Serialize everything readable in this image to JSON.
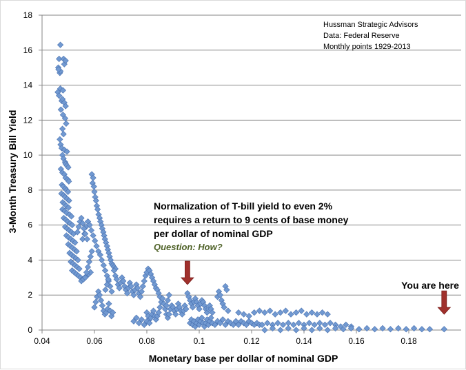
{
  "chart_data": {
    "type": "scatter",
    "title": "",
    "xlabel": "Monetary base per dollar of nominal GDP",
    "ylabel": "3-Month Treasury Bill Yield",
    "xlim": [
      0.04,
      0.2
    ],
    "ylim": [
      0,
      18
    ],
    "xticks": [
      0.04,
      0.06,
      0.08,
      0.1,
      0.12,
      0.14,
      0.16,
      0.18
    ],
    "xtick_labels": [
      "0.04",
      "0.06",
      "0.08",
      "0.1",
      "0.12",
      "0.14",
      "0.16",
      "0.18"
    ],
    "yticks": [
      0,
      2,
      4,
      6,
      8,
      10,
      12,
      14,
      16,
      18
    ],
    "ytick_labels": [
      "0",
      "2",
      "4",
      "6",
      "8",
      "10",
      "12",
      "14",
      "16",
      "18"
    ],
    "grid": "horizontal",
    "marker_color": "#7199d1",
    "marker_edge_color": "#4a72b0",
    "source_lines": [
      "Hussman Strategic Advisors",
      "Data: Federal Reserve",
      "Monthly points 1929-2013"
    ],
    "annotation": {
      "lines": [
        "Normalization of T-bill yield to even 2%",
        "requires a return to 9 cents of base money",
        "per dollar of nominal GDP"
      ],
      "question": "Question: How?",
      "question_color": "#4f6228",
      "arrow_point": [
        0.0955,
        2.6
      ]
    },
    "you_are_here": {
      "label": "You are here",
      "point": [
        0.1935,
        0.9
      ]
    },
    "arrow_color": "#a0302c",
    "points": [
      [
        0.047,
        16.3
      ],
      [
        0.0465,
        15.5
      ],
      [
        0.0462,
        15.0
      ],
      [
        0.0468,
        14.7
      ],
      [
        0.0482,
        15.5
      ],
      [
        0.0485,
        15.2
      ],
      [
        0.049,
        15.4
      ],
      [
        0.047,
        14.8
      ],
      [
        0.0463,
        14.9
      ],
      [
        0.046,
        13.6
      ],
      [
        0.0465,
        13.4
      ],
      [
        0.047,
        13.8
      ],
      [
        0.0475,
        13.1
      ],
      [
        0.048,
        13.7
      ],
      [
        0.0478,
        13.2
      ],
      [
        0.0485,
        13.0
      ],
      [
        0.049,
        12.8
      ],
      [
        0.0472,
        12.6
      ],
      [
        0.048,
        12.3
      ],
      [
        0.0488,
        12.1
      ],
      [
        0.0492,
        11.8
      ],
      [
        0.0478,
        11.5
      ],
      [
        0.0482,
        11.2
      ],
      [
        0.0468,
        10.9
      ],
      [
        0.0471,
        10.6
      ],
      [
        0.0475,
        10.4
      ],
      [
        0.0485,
        10.3
      ],
      [
        0.0495,
        10.2
      ],
      [
        0.0478,
        10.0
      ],
      [
        0.0482,
        9.8
      ],
      [
        0.0488,
        9.6
      ],
      [
        0.049,
        9.5
      ],
      [
        0.0495,
        9.4
      ],
      [
        0.05,
        9.3
      ],
      [
        0.0472,
        9.2
      ],
      [
        0.0478,
        9.0
      ],
      [
        0.0485,
        8.9
      ],
      [
        0.049,
        8.7
      ],
      [
        0.0498,
        8.6
      ],
      [
        0.0502,
        8.5
      ],
      [
        0.0476,
        8.3
      ],
      [
        0.0481,
        8.2
      ],
      [
        0.0489,
        8.1
      ],
      [
        0.0493,
        8.0
      ],
      [
        0.0499,
        7.9
      ],
      [
        0.0474,
        7.8
      ],
      [
        0.0483,
        7.7
      ],
      [
        0.0488,
        7.6
      ],
      [
        0.0496,
        7.5
      ],
      [
        0.0503,
        7.4
      ],
      [
        0.0479,
        7.3
      ],
      [
        0.0486,
        7.2
      ],
      [
        0.0492,
        7.1
      ],
      [
        0.0501,
        7.0
      ],
      [
        0.0478,
        6.9
      ],
      [
        0.0487,
        6.8
      ],
      [
        0.0494,
        6.7
      ],
      [
        0.0505,
        6.6
      ],
      [
        0.0512,
        6.5
      ],
      [
        0.0483,
        6.4
      ],
      [
        0.0491,
        6.3
      ],
      [
        0.0498,
        6.2
      ],
      [
        0.0507,
        6.1
      ],
      [
        0.0515,
        6.0
      ],
      [
        0.0488,
        5.9
      ],
      [
        0.0496,
        5.8
      ],
      [
        0.0504,
        5.7
      ],
      [
        0.0512,
        5.6
      ],
      [
        0.052,
        5.5
      ],
      [
        0.0493,
        5.4
      ],
      [
        0.0501,
        5.3
      ],
      [
        0.051,
        5.2
      ],
      [
        0.0518,
        5.1
      ],
      [
        0.0526,
        5.0
      ],
      [
        0.05,
        4.9
      ],
      [
        0.0508,
        4.8
      ],
      [
        0.0516,
        4.7
      ],
      [
        0.0524,
        4.6
      ],
      [
        0.0532,
        4.5
      ],
      [
        0.0505,
        4.4
      ],
      [
        0.0513,
        4.3
      ],
      [
        0.0521,
        4.2
      ],
      [
        0.0529,
        4.1
      ],
      [
        0.0537,
        4.0
      ],
      [
        0.051,
        3.9
      ],
      [
        0.0518,
        3.8
      ],
      [
        0.0526,
        3.7
      ],
      [
        0.0534,
        3.6
      ],
      [
        0.0542,
        3.5
      ],
      [
        0.0515,
        3.4
      ],
      [
        0.0523,
        3.3
      ],
      [
        0.0531,
        3.2
      ],
      [
        0.0539,
        3.1
      ],
      [
        0.0547,
        3.0
      ],
      [
        0.0555,
        2.9
      ],
      [
        0.0563,
        3.0
      ],
      [
        0.0571,
        3.1
      ],
      [
        0.0578,
        3.2
      ],
      [
        0.0585,
        3.3
      ],
      [
        0.059,
        8.9
      ],
      [
        0.0595,
        8.7
      ],
      [
        0.0593,
        8.4
      ],
      [
        0.0598,
        8.2
      ],
      [
        0.06,
        7.9
      ],
      [
        0.0603,
        7.6
      ],
      [
        0.0606,
        7.4
      ],
      [
        0.0609,
        7.1
      ],
      [
        0.0612,
        6.9
      ],
      [
        0.0616,
        6.6
      ],
      [
        0.062,
        6.4
      ],
      [
        0.0623,
        6.2
      ],
      [
        0.0627,
        6.0
      ],
      [
        0.063,
        5.8
      ],
      [
        0.0634,
        5.6
      ],
      [
        0.0637,
        5.4
      ],
      [
        0.064,
        5.2
      ],
      [
        0.0644,
        5.0
      ],
      [
        0.0648,
        4.8
      ],
      [
        0.0651,
        4.6
      ],
      [
        0.0655,
        4.4
      ],
      [
        0.0658,
        4.2
      ],
      [
        0.0662,
        4.0
      ],
      [
        0.0666,
        3.8
      ],
      [
        0.067,
        3.7
      ],
      [
        0.0675,
        3.6
      ],
      [
        0.068,
        3.5
      ],
      [
        0.0555,
        5.2
      ],
      [
        0.0562,
        5.5
      ],
      [
        0.0568,
        5.9
      ],
      [
        0.0575,
        6.2
      ],
      [
        0.0582,
        6.0
      ],
      [
        0.0588,
        5.7
      ],
      [
        0.0595,
        5.4
      ],
      [
        0.0602,
        5.1
      ],
      [
        0.0608,
        4.8
      ],
      [
        0.0615,
        4.5
      ],
      [
        0.0622,
        4.3
      ],
      [
        0.0628,
        4.0
      ],
      [
        0.0635,
        3.7
      ],
      [
        0.0641,
        3.4
      ],
      [
        0.0648,
        3.1
      ],
      [
        0.0654,
        2.8
      ],
      [
        0.066,
        2.5
      ],
      [
        0.0666,
        2.2
      ],
      [
        0.06,
        1.3
      ],
      [
        0.0605,
        1.6
      ],
      [
        0.061,
        1.9
      ],
      [
        0.0615,
        2.2
      ],
      [
        0.062,
        2.0
      ],
      [
        0.0625,
        1.7
      ],
      [
        0.063,
        1.4
      ],
      [
        0.0635,
        1.1
      ],
      [
        0.064,
        0.9
      ],
      [
        0.0645,
        1.0
      ],
      [
        0.065,
        1.2
      ],
      [
        0.0655,
        1.5
      ],
      [
        0.066,
        1.1
      ],
      [
        0.0665,
        0.8
      ],
      [
        0.067,
        1.0
      ],
      [
        0.0642,
        2.3
      ],
      [
        0.0648,
        2.6
      ],
      [
        0.0653,
        2.9
      ],
      [
        0.0675,
        3.4
      ],
      [
        0.068,
        3.1
      ],
      [
        0.0685,
        2.9
      ],
      [
        0.069,
        2.6
      ],
      [
        0.0695,
        2.4
      ],
      [
        0.07,
        2.7
      ],
      [
        0.0705,
        3.0
      ],
      [
        0.071,
        2.8
      ],
      [
        0.0715,
        2.5
      ],
      [
        0.072,
        2.3
      ],
      [
        0.0725,
        2.1
      ],
      [
        0.073,
        2.4
      ],
      [
        0.0735,
        2.7
      ],
      [
        0.074,
        2.5
      ],
      [
        0.0745,
        2.2
      ],
      [
        0.075,
        2.0
      ],
      [
        0.0755,
        2.3
      ],
      [
        0.076,
        2.6
      ],
      [
        0.0765,
        2.4
      ],
      [
        0.077,
        2.1
      ],
      [
        0.0775,
        1.9
      ],
      [
        0.078,
        2.2
      ],
      [
        0.0785,
        2.5
      ],
      [
        0.079,
        2.8
      ],
      [
        0.0795,
        3.1
      ],
      [
        0.08,
        3.3
      ],
      [
        0.0805,
        3.5
      ],
      [
        0.081,
        3.4
      ],
      [
        0.0815,
        3.2
      ],
      [
        0.082,
        3.0
      ],
      [
        0.0825,
        2.8
      ],
      [
        0.083,
        2.6
      ],
      [
        0.0835,
        2.4
      ],
      [
        0.084,
        2.3
      ],
      [
        0.0845,
        2.1
      ],
      [
        0.085,
        1.9
      ],
      [
        0.08,
        1.0
      ],
      [
        0.0805,
        0.8
      ],
      [
        0.081,
        0.6
      ],
      [
        0.0815,
        0.7
      ],
      [
        0.082,
        0.9
      ],
      [
        0.0825,
        1.1
      ],
      [
        0.083,
        0.8
      ],
      [
        0.0835,
        0.6
      ],
      [
        0.084,
        0.8
      ],
      [
        0.0845,
        1.0
      ],
      [
        0.085,
        1.3
      ],
      [
        0.0855,
        1.6
      ],
      [
        0.086,
        1.8
      ],
      [
        0.0865,
        1.5
      ],
      [
        0.087,
        1.2
      ],
      [
        0.0875,
        1.4
      ],
      [
        0.088,
        1.7
      ],
      [
        0.0885,
        2.0
      ],
      [
        0.0875,
        0.9
      ],
      [
        0.088,
        0.7
      ],
      [
        0.0885,
        0.9
      ],
      [
        0.089,
        1.2
      ],
      [
        0.0895,
        1.4
      ],
      [
        0.09,
        1.3
      ],
      [
        0.0905,
        1.1
      ],
      [
        0.091,
        0.9
      ],
      [
        0.0915,
        1.2
      ],
      [
        0.092,
        1.5
      ],
      [
        0.0925,
        1.3
      ],
      [
        0.093,
        1.1
      ],
      [
        0.0935,
        0.9
      ],
      [
        0.094,
        1.1
      ],
      [
        0.0945,
        1.4
      ],
      [
        0.095,
        1.2
      ],
      [
        0.0955,
        2.1
      ],
      [
        0.096,
        1.9
      ],
      [
        0.0965,
        1.7
      ],
      [
        0.097,
        1.5
      ],
      [
        0.0975,
        1.3
      ],
      [
        0.098,
        1.6
      ],
      [
        0.0985,
        1.8
      ],
      [
        0.099,
        1.6
      ],
      [
        0.0995,
        1.4
      ],
      [
        0.1,
        1.2
      ],
      [
        0.1005,
        1.5
      ],
      [
        0.101,
        1.7
      ],
      [
        0.1015,
        1.6
      ],
      [
        0.102,
        1.4
      ],
      [
        0.1025,
        1.2
      ],
      [
        0.103,
        1.0
      ],
      [
        0.1035,
        1.2
      ],
      [
        0.104,
        1.4
      ],
      [
        0.1045,
        1.2
      ],
      [
        0.105,
        1.0
      ],
      [
        0.107,
        1.9
      ],
      [
        0.1075,
        2.2
      ],
      [
        0.108,
        2.0
      ],
      [
        0.1085,
        1.7
      ],
      [
        0.109,
        1.5
      ],
      [
        0.1095,
        1.3
      ],
      [
        0.11,
        2.5
      ],
      [
        0.1105,
        2.3
      ],
      [
        0.111,
        1.1
      ],
      [
        0.0965,
        0.4
      ],
      [
        0.097,
        0.6
      ],
      [
        0.0975,
        0.3
      ],
      [
        0.098,
        0.5
      ],
      [
        0.0985,
        0.2
      ],
      [
        0.099,
        0.4
      ],
      [
        0.0995,
        0.6
      ],
      [
        0.1,
        0.3
      ],
      [
        0.1005,
        0.5
      ],
      [
        0.101,
        0.7
      ],
      [
        0.1015,
        0.4
      ],
      [
        0.102,
        0.2
      ],
      [
        0.1025,
        0.4
      ],
      [
        0.103,
        0.6
      ],
      [
        0.1035,
        0.3
      ],
      [
        0.104,
        0.5
      ],
      [
        0.1045,
        0.7
      ],
      [
        0.105,
        0.4
      ],
      [
        0.106,
        0.3
      ],
      [
        0.107,
        0.5
      ],
      [
        0.108,
        0.4
      ],
      [
        0.109,
        0.6
      ],
      [
        0.11,
        0.3
      ],
      [
        0.111,
        0.5
      ],
      [
        0.112,
        0.4
      ],
      [
        0.113,
        0.3
      ],
      [
        0.114,
        0.5
      ],
      [
        0.115,
        0.3
      ],
      [
        0.116,
        0.5
      ],
      [
        0.117,
        0.4
      ],
      [
        0.118,
        0.3
      ],
      [
        0.119,
        0.5
      ],
      [
        0.12,
        0.4
      ],
      [
        0.121,
        0.3
      ],
      [
        0.122,
        0.4
      ],
      [
        0.123,
        0.3
      ],
      [
        0.115,
        1.0
      ],
      [
        0.117,
        0.9
      ],
      [
        0.119,
        0.8
      ],
      [
        0.121,
        1.0
      ],
      [
        0.123,
        1.1
      ],
      [
        0.125,
        1.0
      ],
      [
        0.127,
        1.1
      ],
      [
        0.129,
        0.9
      ],
      [
        0.131,
        1.0
      ],
      [
        0.133,
        1.1
      ],
      [
        0.135,
        0.9
      ],
      [
        0.137,
        1.0
      ],
      [
        0.139,
        1.1
      ],
      [
        0.141,
        0.9
      ],
      [
        0.143,
        1.0
      ],
      [
        0.145,
        0.9
      ],
      [
        0.147,
        1.0
      ],
      [
        0.149,
        0.9
      ],
      [
        0.124,
        0.3
      ],
      [
        0.126,
        0.4
      ],
      [
        0.128,
        0.3
      ],
      [
        0.13,
        0.4
      ],
      [
        0.132,
        0.3
      ],
      [
        0.134,
        0.4
      ],
      [
        0.136,
        0.3
      ],
      [
        0.138,
        0.4
      ],
      [
        0.14,
        0.3
      ],
      [
        0.142,
        0.4
      ],
      [
        0.144,
        0.3
      ],
      [
        0.146,
        0.4
      ],
      [
        0.148,
        0.3
      ],
      [
        0.15,
        0.4
      ],
      [
        0.152,
        0.3
      ],
      [
        0.154,
        0.2
      ],
      [
        0.156,
        0.3
      ],
      [
        0.158,
        0.2
      ],
      [
        0.125,
        0.0
      ],
      [
        0.128,
        0.1
      ],
      [
        0.131,
        0.0
      ],
      [
        0.134,
        0.1
      ],
      [
        0.137,
        0.0
      ],
      [
        0.14,
        0.1
      ],
      [
        0.143,
        0.0
      ],
      [
        0.146,
        0.1
      ],
      [
        0.149,
        0.0
      ],
      [
        0.152,
        0.1
      ],
      [
        0.155,
        0.05
      ],
      [
        0.158,
        0.1
      ],
      [
        0.161,
        0.05
      ],
      [
        0.164,
        0.1
      ],
      [
        0.167,
        0.05
      ],
      [
        0.17,
        0.1
      ],
      [
        0.173,
        0.05
      ],
      [
        0.176,
        0.1
      ],
      [
        0.179,
        0.05
      ],
      [
        0.182,
        0.1
      ],
      [
        0.185,
        0.05
      ],
      [
        0.188,
        0.05
      ],
      [
        0.1935,
        0.05
      ],
      [
        0.075,
        0.5
      ],
      [
        0.076,
        0.7
      ],
      [
        0.077,
        0.4
      ],
      [
        0.078,
        0.6
      ],
      [
        0.079,
        0.3
      ],
      [
        0.08,
        0.5
      ],
      [
        0.081,
        0.4
      ],
      [
        0.055,
        2.8
      ],
      [
        0.0558,
        2.9
      ],
      [
        0.0565,
        3.0
      ],
      [
        0.057,
        3.3
      ],
      [
        0.0575,
        3.6
      ],
      [
        0.058,
        3.9
      ],
      [
        0.0585,
        4.2
      ],
      [
        0.059,
        4.5
      ],
      [
        0.0535,
        5.6
      ],
      [
        0.054,
        5.9
      ],
      [
        0.0545,
        6.2
      ],
      [
        0.055,
        6.4
      ],
      [
        0.0555,
        6.1
      ],
      [
        0.056,
        5.8
      ],
      [
        0.0565,
        5.5
      ],
      [
        0.0572,
        5.2
      ]
    ]
  }
}
